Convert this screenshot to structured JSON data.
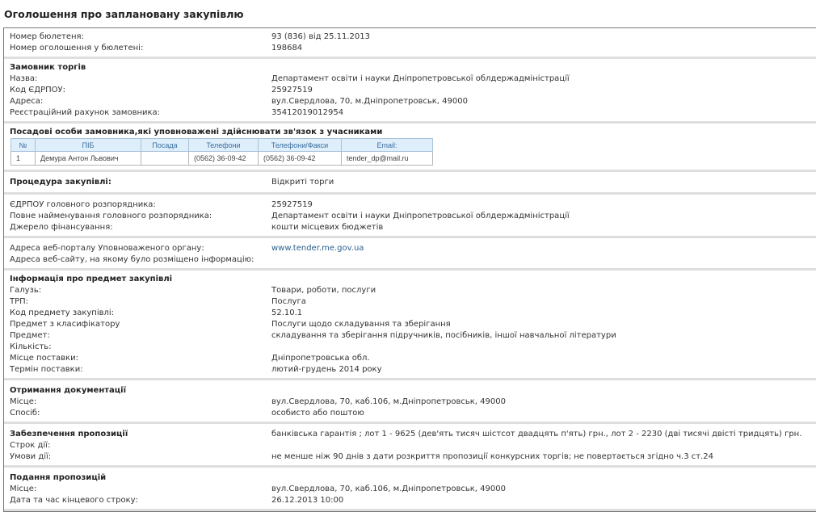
{
  "page_title": "Оголошення про заплановану закупівлю",
  "bulletin": {
    "rows": [
      {
        "label": "Номер бюлетеня:",
        "value": "93 (836) від 25.11.2013"
      },
      {
        "label": "Номер оголошення у бюлетені:",
        "value": "198684"
      }
    ]
  },
  "customer": {
    "title": "Замовник торгів",
    "rows": [
      {
        "label": "Назва:",
        "value": "Департамент освіти і науки Дніпропетровської облдержадміністрації"
      },
      {
        "label": "Код ЄДРПОУ:",
        "value": "25927519"
      },
      {
        "label": "Адреса:",
        "value": "вул.Свердлова, 70, м.Дніпропетровськ, 49000"
      },
      {
        "label": "Реєстраційний рахунок замовника:",
        "value": "35412019012954"
      }
    ]
  },
  "officials": {
    "title": "Посадові особи замовника,які уповноважені здійснювати зв'язок з учасниками",
    "columns": [
      "№",
      "ПІБ",
      "Посада",
      "Телефони",
      "Телефони/Факси",
      "Email:"
    ],
    "rows": [
      [
        "1",
        "Демура Антон Львович",
        "",
        "(0562) 36-09-42",
        "(0562) 36-09-42",
        "tender_dp@mail.ru"
      ]
    ]
  },
  "procedure": {
    "label": "Процедура закупівлі:",
    "value": "Відкриті торги"
  },
  "funding": {
    "rows": [
      {
        "label": "ЄДРПОУ головного розпорядника:",
        "value": "25927519"
      },
      {
        "label": "Повне найменування головного розпорядника:",
        "value": "Департамент освіти і науки Дніпропетровської облдержадміністрації"
      },
      {
        "label": "Джерело фінансування:",
        "value": "кошти місцевих бюджетів"
      }
    ]
  },
  "portal": {
    "rows": [
      {
        "label": "Адреса веб-порталу Уповноваженого органу:",
        "value": "www.tender.me.gov.ua"
      },
      {
        "label": "Адреса веб-сайту, на якому було розміщено інформацію:",
        "value": ""
      }
    ]
  },
  "subject": {
    "title": "Інформація про предмет закупівлі",
    "rows": [
      {
        "label": "Галузь:",
        "value": "Товари, роботи, послуги"
      },
      {
        "label": "ТРП:",
        "value": "Послуга"
      },
      {
        "label": "Код предмету закупівлі:",
        "value": "52.10.1"
      },
      {
        "label": "Предмет з класифікатору",
        "value": "Послуги щодо складування та зберігання"
      },
      {
        "label": "Предмет:",
        "value": "складування та зберігання підручників, посібників, іншої навчальної літератури"
      },
      {
        "label": "Кількість:",
        "value": ""
      },
      {
        "label": "Місце поставки:",
        "value": "Дніпропетровська обл."
      },
      {
        "label": "Термін поставки:",
        "value": "лютий-грудень 2014 року"
      }
    ]
  },
  "documentation": {
    "title": "Отримання документації",
    "rows": [
      {
        "label": "Місце:",
        "value": "вул.Свердлова, 70, каб.106, м.Дніпропетровськ, 49000"
      },
      {
        "label": "Спосіб:",
        "value": "особисто або поштою"
      }
    ]
  },
  "security": {
    "rows": [
      {
        "label": "Забезпечення пропозиції",
        "value": "банківська гарантія ; лот 1 - 9625 (дев'ять тисяч шістсот двадцять п'ять) грн., лот 2 - 2230 (дві тисячі двісті тридцять) грн."
      },
      {
        "label": "Строк дії:",
        "value": ""
      },
      {
        "label": "Умови дії:",
        "value": "не менше ніж 90 днів з дати розкриття пропозиції конкурсних торгів; не повертається згідно ч.3 ст.24"
      }
    ]
  },
  "submission": {
    "title": "Подання пропозицій",
    "rows": [
      {
        "label": "Місце:",
        "value": "вул.Свердлова, 70, каб.106, м.Дніпропетровськ, 49000"
      },
      {
        "label": "Дата та час кінцевого строку:",
        "value": "26.12.2013 10:00"
      }
    ]
  }
}
